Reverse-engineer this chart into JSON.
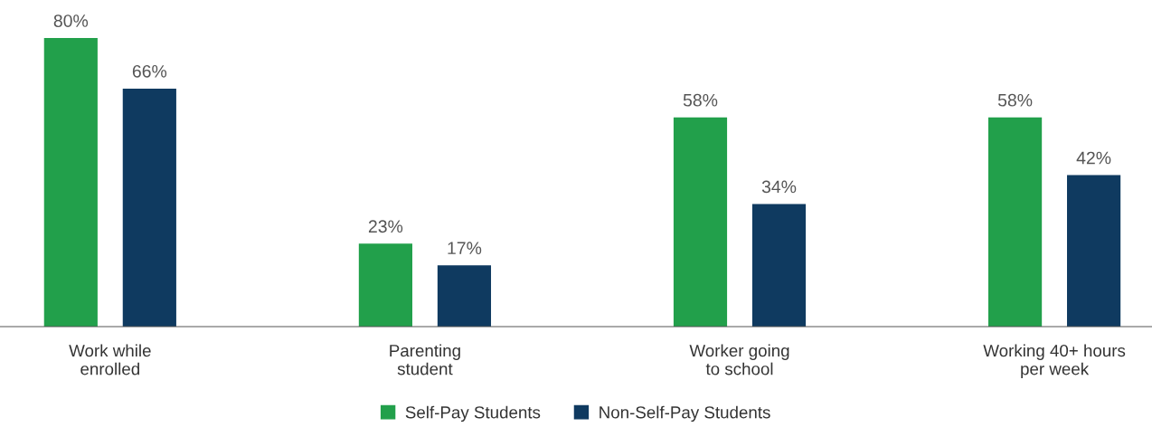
{
  "chart_data": {
    "type": "bar",
    "categories": [
      "Work while\nenrolled",
      "Parenting\nstudent",
      "Worker going\nto school",
      "Working 40+ hours\nper week"
    ],
    "series": [
      {
        "name": "Self-Pay Students",
        "color": "#22a04b",
        "values": [
          80,
          23,
          58,
          58
        ],
        "value_labels": [
          "80%",
          "23%",
          "58%",
          "58%"
        ]
      },
      {
        "name": "Non-Self-Pay Students",
        "color": "#0f3a60",
        "values": [
          66,
          17,
          34,
          42
        ],
        "value_labels": [
          "66%",
          "17%",
          "34%",
          "42%"
        ]
      }
    ],
    "legend": "bottom",
    "grid": false
  }
}
